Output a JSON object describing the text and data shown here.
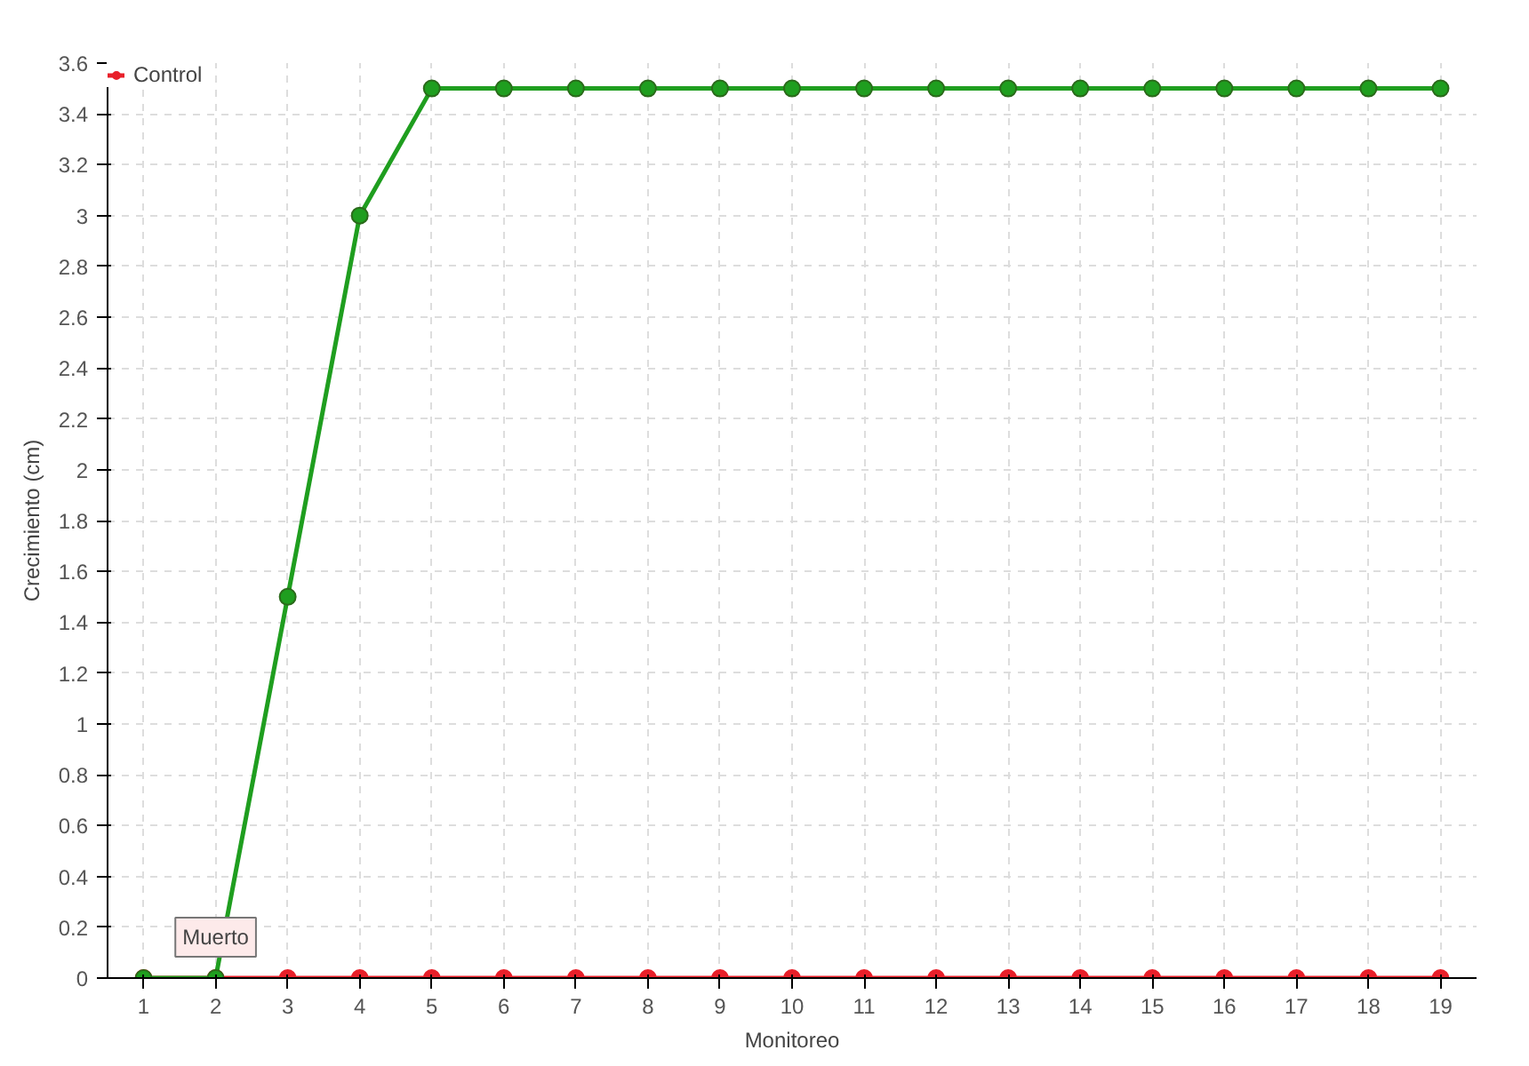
{
  "chart_data": {
    "type": "line",
    "xlabel": "Monitoreo",
    "ylabel": "Crecimiento (cm)",
    "x": [
      1,
      2,
      3,
      4,
      5,
      6,
      7,
      8,
      9,
      10,
      11,
      12,
      13,
      14,
      15,
      16,
      17,
      18,
      19
    ],
    "series": [
      {
        "color": "#1f9e1f",
        "values": [
          0,
          0,
          1.5,
          3,
          3.5,
          3.5,
          3.5,
          3.5,
          3.5,
          3.5,
          3.5,
          3.5,
          3.5,
          3.5,
          3.5,
          3.5,
          3.5,
          3.5,
          3.5
        ]
      },
      {
        "name": "Control",
        "color": "#e8202a",
        "values": [
          0,
          0,
          0,
          0,
          0,
          0,
          0,
          0,
          0,
          0,
          0,
          0,
          0,
          0,
          0,
          0,
          0,
          0,
          0
        ]
      }
    ],
    "annotations": [
      {
        "text": "Muerto",
        "x": 2,
        "y": 0
      }
    ],
    "xlim": [
      0.5,
      19.5
    ],
    "xticks": [
      1,
      2,
      3,
      4,
      5,
      6,
      7,
      8,
      9,
      10,
      11,
      12,
      13,
      14,
      15,
      16,
      17,
      18,
      19
    ],
    "ylim": [
      0,
      3.6
    ],
    "yticks": [
      0,
      0.2,
      0.4,
      0.6,
      0.8,
      1,
      1.2,
      1.4,
      1.6,
      1.8,
      2,
      2.2,
      2.4,
      2.6,
      2.8,
      3,
      3.2,
      3.4,
      3.6
    ],
    "grid": true,
    "legend": "top left",
    "marker": "circle",
    "line_style": "solid"
  }
}
